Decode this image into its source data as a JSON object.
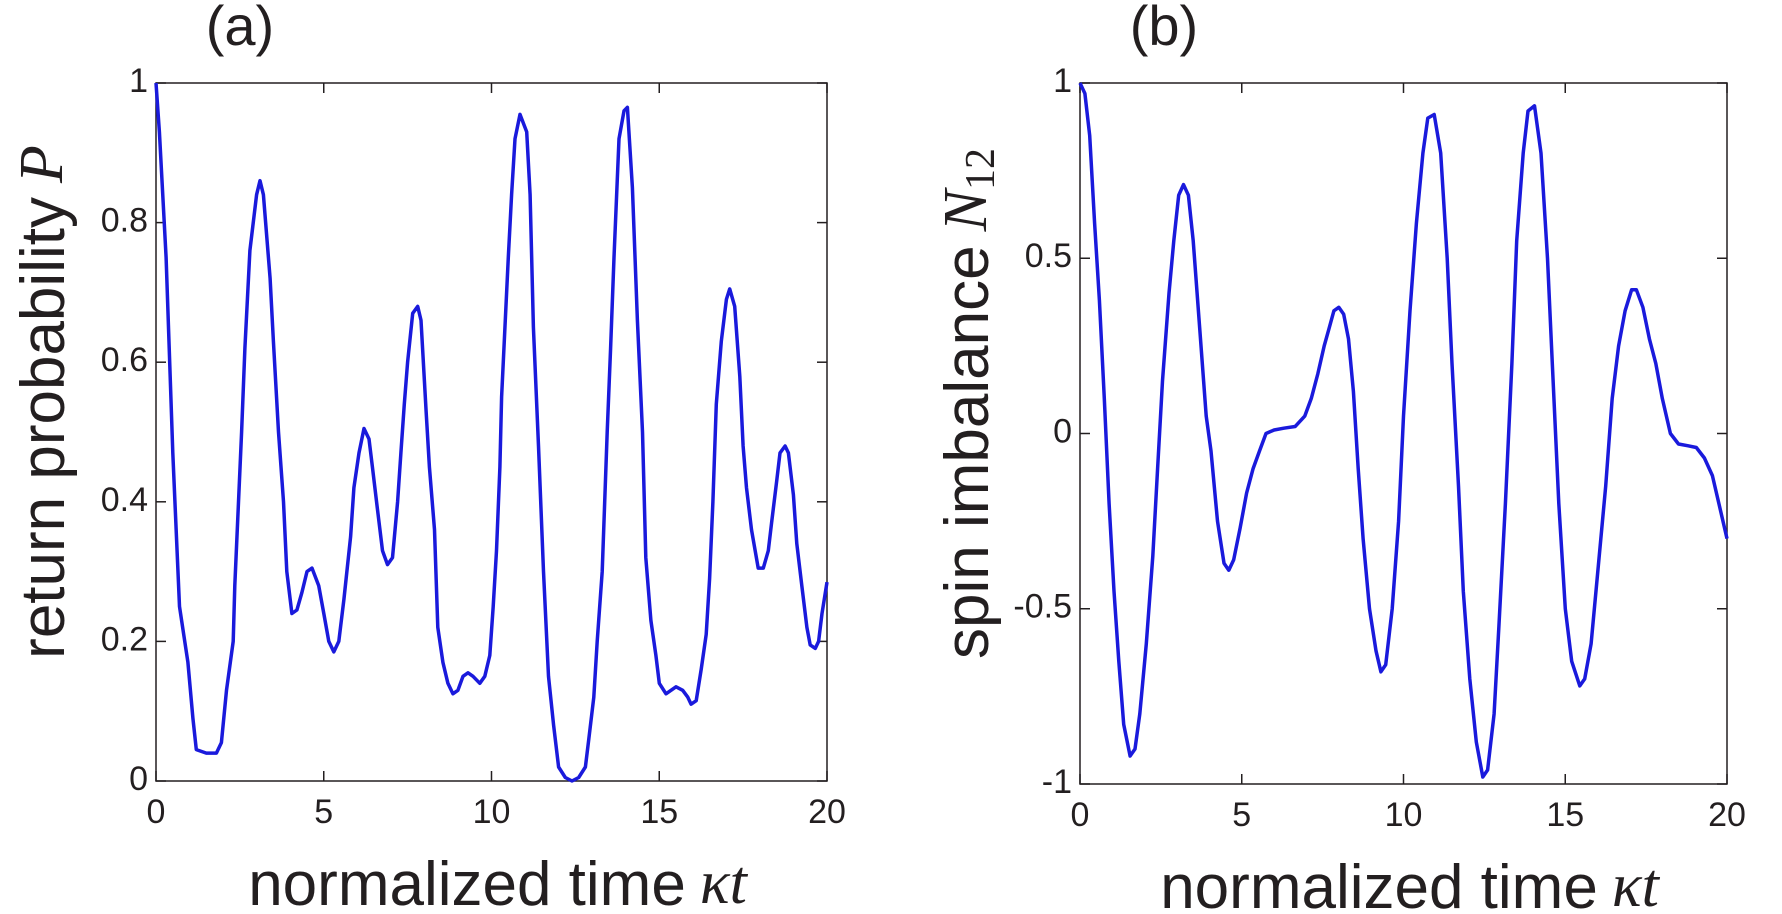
{
  "chart_data": [
    {
      "type": "line",
      "title": "(a)",
      "xlabel": {
        "text": "normalized time",
        "symbol": "κt"
      },
      "ylabel": {
        "text": "return probability",
        "symbol": "P"
      },
      "xlim": [
        0,
        20
      ],
      "xticks": [
        0,
        5,
        10,
        15,
        20
      ],
      "ylim": [
        0,
        1
      ],
      "yticks": [
        0,
        0.2,
        0.4,
        0.6,
        0.8,
        1
      ],
      "series": [
        {
          "color": "#1a1adc",
          "x": [
            0,
            0.1,
            0.3,
            0.5,
            0.7,
            0.95,
            1.1,
            1.2,
            1.5,
            1.8,
            1.95,
            2.1,
            2.3,
            2.35,
            2.55,
            2.65,
            2.8,
            3.0,
            3.1,
            3.2,
            3.4,
            3.5,
            3.65,
            3.8,
            3.9,
            4.05,
            4.2,
            4.35,
            4.5,
            4.65,
            4.85,
            5.0,
            5.15,
            5.3,
            5.45,
            5.6,
            5.8,
            5.9,
            6.05,
            6.2,
            6.35,
            6.45,
            6.6,
            6.75,
            6.9,
            7.05,
            7.2,
            7.3,
            7.4,
            7.5,
            7.65,
            7.8,
            7.9,
            8.05,
            8.15,
            8.3,
            8.4,
            8.55,
            8.7,
            8.85,
            9.0,
            9.15,
            9.3,
            9.45,
            9.65,
            9.8,
            9.95,
            10.05,
            10.15,
            10.25,
            10.3,
            10.5,
            10.6,
            10.7,
            10.85,
            11.05,
            11.15,
            11.25,
            11.4,
            11.55,
            11.7,
            11.85,
            12.0,
            12.2,
            12.4,
            12.6,
            12.8,
            12.9,
            13.05,
            13.15,
            13.3,
            13.45,
            13.55,
            13.65,
            13.8,
            13.95,
            14.05,
            14.2,
            14.35,
            14.5,
            14.6,
            14.75,
            14.9,
            15.0,
            15.2,
            15.35,
            15.5,
            15.7,
            15.85,
            15.95,
            16.1,
            16.25,
            16.4,
            16.5,
            16.6,
            16.7,
            16.85,
            17.0,
            17.1,
            17.25,
            17.4,
            17.5,
            17.6,
            17.75,
            17.95,
            18.1,
            18.25,
            18.35,
            18.5,
            18.6,
            18.75,
            18.85,
            19.0,
            19.1,
            19.25,
            19.4,
            19.5,
            19.65,
            19.75,
            19.85,
            20.0
          ],
          "values": [
            1.0,
            0.93,
            0.75,
            0.47,
            0.25,
            0.17,
            0.09,
            0.045,
            0.04,
            0.04,
            0.055,
            0.13,
            0.2,
            0.28,
            0.5,
            0.62,
            0.76,
            0.84,
            0.86,
            0.84,
            0.72,
            0.63,
            0.5,
            0.4,
            0.3,
            0.24,
            0.245,
            0.27,
            0.3,
            0.305,
            0.28,
            0.24,
            0.2,
            0.185,
            0.2,
            0.26,
            0.35,
            0.42,
            0.47,
            0.505,
            0.49,
            0.45,
            0.39,
            0.33,
            0.31,
            0.32,
            0.4,
            0.47,
            0.54,
            0.6,
            0.67,
            0.68,
            0.66,
            0.53,
            0.45,
            0.36,
            0.22,
            0.17,
            0.14,
            0.125,
            0.13,
            0.15,
            0.155,
            0.15,
            0.14,
            0.15,
            0.18,
            0.25,
            0.33,
            0.45,
            0.55,
            0.75,
            0.84,
            0.92,
            0.955,
            0.93,
            0.84,
            0.65,
            0.48,
            0.3,
            0.15,
            0.08,
            0.02,
            0.005,
            0.0,
            0.005,
            0.02,
            0.06,
            0.12,
            0.2,
            0.3,
            0.5,
            0.62,
            0.75,
            0.92,
            0.96,
            0.965,
            0.85,
            0.66,
            0.5,
            0.32,
            0.23,
            0.18,
            0.14,
            0.125,
            0.13,
            0.135,
            0.13,
            0.12,
            0.11,
            0.115,
            0.16,
            0.21,
            0.29,
            0.4,
            0.54,
            0.63,
            0.69,
            0.705,
            0.68,
            0.58,
            0.48,
            0.42,
            0.36,
            0.305,
            0.305,
            0.33,
            0.37,
            0.43,
            0.47,
            0.48,
            0.47,
            0.41,
            0.34,
            0.28,
            0.22,
            0.195,
            0.19,
            0.2,
            0.24,
            0.285
          ]
        }
      ]
    },
    {
      "type": "line",
      "title": "(b)",
      "xlabel": {
        "text": "normalized time",
        "symbol": "κt"
      },
      "ylabel": {
        "text": "spin imbalance",
        "symbol": "N",
        "subscript": "12"
      },
      "xlim": [
        0,
        20
      ],
      "xticks": [
        0,
        5,
        10,
        15,
        20
      ],
      "ylim": [
        -1,
        1
      ],
      "yticks": [
        -1,
        -0.5,
        0,
        0.5,
        1
      ],
      "series": [
        {
          "color": "#1a1adc",
          "x": [
            0,
            0.15,
            0.3,
            0.45,
            0.6,
            0.75,
            0.9,
            1.05,
            1.2,
            1.35,
            1.55,
            1.7,
            1.85,
            2.05,
            2.25,
            2.4,
            2.55,
            2.75,
            2.9,
            3.05,
            3.2,
            3.35,
            3.5,
            3.7,
            3.9,
            4.05,
            4.25,
            4.45,
            4.6,
            4.75,
            4.95,
            5.15,
            5.35,
            5.55,
            5.75,
            6.0,
            6.3,
            6.65,
            6.95,
            7.15,
            7.35,
            7.55,
            7.7,
            7.85,
            8.0,
            8.15,
            8.3,
            8.45,
            8.6,
            8.75,
            8.95,
            9.15,
            9.3,
            9.45,
            9.65,
            9.85,
            10.0,
            10.2,
            10.4,
            10.6,
            10.75,
            10.95,
            11.15,
            11.35,
            11.5,
            11.7,
            11.85,
            12.05,
            12.25,
            12.45,
            12.6,
            12.8,
            12.95,
            13.15,
            13.35,
            13.5,
            13.7,
            13.85,
            14.05,
            14.25,
            14.45,
            14.6,
            14.8,
            15.0,
            15.2,
            15.45,
            15.6,
            15.8,
            16.0,
            16.25,
            16.45,
            16.65,
            16.85,
            17.05,
            17.2,
            17.4,
            17.6,
            17.8,
            18.0,
            18.25,
            18.5,
            18.8,
            19.05,
            19.3,
            19.55,
            19.75,
            20.0
          ],
          "values": [
            1.0,
            0.97,
            0.85,
            0.6,
            0.38,
            0.1,
            -0.2,
            -0.45,
            -0.65,
            -0.83,
            -0.92,
            -0.9,
            -0.8,
            -0.6,
            -0.35,
            -0.1,
            0.15,
            0.4,
            0.55,
            0.68,
            0.71,
            0.68,
            0.55,
            0.3,
            0.05,
            -0.05,
            -0.25,
            -0.37,
            -0.39,
            -0.36,
            -0.27,
            -0.17,
            -0.1,
            -0.05,
            0.0,
            0.01,
            0.015,
            0.02,
            0.05,
            0.1,
            0.17,
            0.25,
            0.3,
            0.35,
            0.36,
            0.34,
            0.27,
            0.12,
            -0.1,
            -0.3,
            -0.5,
            -0.62,
            -0.68,
            -0.66,
            -0.5,
            -0.25,
            0.05,
            0.35,
            0.6,
            0.8,
            0.9,
            0.91,
            0.8,
            0.5,
            0.2,
            -0.15,
            -0.45,
            -0.7,
            -0.88,
            -0.98,
            -0.96,
            -0.8,
            -0.55,
            -0.2,
            0.2,
            0.55,
            0.8,
            0.92,
            0.935,
            0.8,
            0.5,
            0.2,
            -0.2,
            -0.5,
            -0.65,
            -0.72,
            -0.7,
            -0.6,
            -0.4,
            -0.15,
            0.1,
            0.25,
            0.35,
            0.41,
            0.41,
            0.36,
            0.27,
            0.2,
            0.1,
            0.0,
            -0.03,
            -0.035,
            -0.04,
            -0.07,
            -0.12,
            -0.2,
            -0.3
          ]
        }
      ]
    }
  ]
}
